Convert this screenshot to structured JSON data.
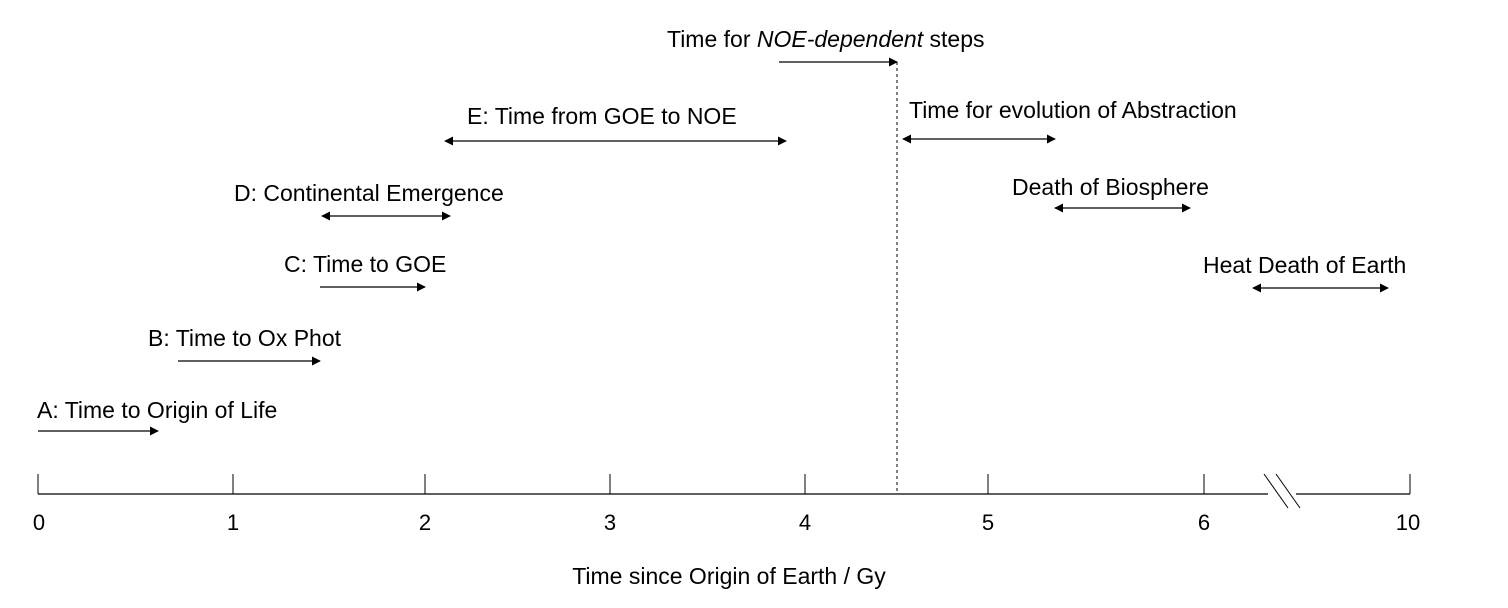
{
  "timeline": {
    "axis_title": "Time since Origin of Earth / Gy",
    "ticks": [
      "0",
      "1",
      "2",
      "3",
      "4",
      "5",
      "6",
      "10"
    ],
    "axis_break": true,
    "present_day_gy": 4.5
  },
  "intervals": [
    {
      "id": "a",
      "label": "A: Time to Origin of Life",
      "style": "single-arrow"
    },
    {
      "id": "b",
      "label": "B: Time to Ox Phot",
      "style": "single-arrow"
    },
    {
      "id": "c",
      "label": "C: Time to GOE",
      "style": "single-arrow"
    },
    {
      "id": "d",
      "label": "D: Continental Emergence",
      "style": "double-arrow"
    },
    {
      "id": "e",
      "label": "E: Time from GOE to NOE",
      "style": "double-arrow"
    },
    {
      "id": "noe",
      "label_prefix": "Time for ",
      "label_italic": "NOE-dependent",
      "label_suffix": " steps",
      "style": "single-arrow"
    },
    {
      "id": "abs",
      "label": "Time for evolution of Abstraction",
      "style": "double-arrow"
    },
    {
      "id": "bio",
      "label": "Death of Biosphere",
      "style": "double-arrow"
    },
    {
      "id": "heat",
      "label": "Heat Death of Earth",
      "style": "double-arrow"
    }
  ]
}
